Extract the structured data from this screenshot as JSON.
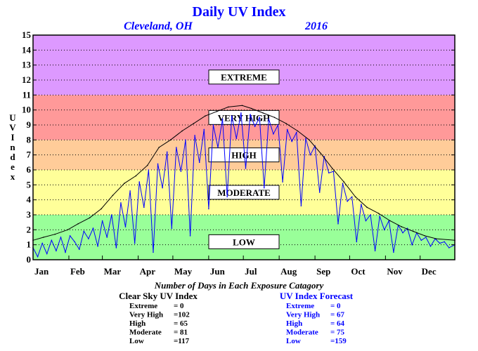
{
  "chart_data": {
    "type": "line",
    "title": "Daily UV Index",
    "location": "Cleveland, OH",
    "year": "2016",
    "ylabel": "UV Index",
    "ylim": [
      0,
      15
    ],
    "yticks": [
      0,
      1,
      2,
      3,
      4,
      5,
      6,
      7,
      8,
      9,
      10,
      11,
      12,
      13,
      14,
      15
    ],
    "xlim": [
      1,
      366
    ],
    "months": [
      {
        "label": "Jan",
        "day": 1
      },
      {
        "label": "Feb",
        "day": 32
      },
      {
        "label": "Mar",
        "day": 61
      },
      {
        "label": "Apr",
        "day": 92
      },
      {
        "label": "May",
        "day": 122
      },
      {
        "label": "Jun",
        "day": 153
      },
      {
        "label": "Jul",
        "day": 183
      },
      {
        "label": "Aug",
        "day": 214
      },
      {
        "label": "Sep",
        "day": 245
      },
      {
        "label": "Oct",
        "day": 275
      },
      {
        "label": "Nov",
        "day": 306
      },
      {
        "label": "Dec",
        "day": 336
      }
    ],
    "zones": [
      {
        "label": "LOW",
        "from": 0,
        "to": 3,
        "color": "#99ff99"
      },
      {
        "label": "MODERATE",
        "from": 3,
        "to": 6,
        "color": "#ffff99"
      },
      {
        "label": "HIGH",
        "from": 6,
        "to": 8,
        "color": "#ffcc99"
      },
      {
        "label": "VERY HIGH",
        "from": 8,
        "to": 11,
        "color": "#ff9999"
      },
      {
        "label": "EXTREME",
        "from": 11,
        "to": 15,
        "color": "#dd99ff"
      }
    ],
    "series": [
      {
        "name": "Clear Sky UV Index",
        "color": "#000000",
        "x": [
          1,
          10,
          20,
          31,
          40,
          50,
          60,
          70,
          80,
          90,
          100,
          110,
          120,
          130,
          140,
          150,
          160,
          170,
          182,
          190,
          200,
          210,
          220,
          230,
          240,
          250,
          260,
          270,
          280,
          290,
          300,
          310,
          320,
          330,
          340,
          350,
          366
        ],
        "values": [
          1.3,
          1.5,
          1.7,
          2.0,
          2.4,
          2.8,
          3.4,
          4.3,
          5.1,
          5.6,
          6.3,
          7.5,
          8.0,
          8.6,
          9.1,
          9.6,
          9.9,
          10.2,
          10.3,
          10.1,
          9.8,
          9.5,
          9.1,
          8.6,
          8.0,
          7.1,
          6.1,
          5.2,
          4.2,
          3.5,
          3.1,
          2.6,
          2.2,
          1.9,
          1.6,
          1.4,
          1.3
        ]
      },
      {
        "name": "UV Index Forecast",
        "color": "#0000ff",
        "x": [
          1,
          5,
          9,
          13,
          17,
          21,
          25,
          29,
          33,
          37,
          41,
          45,
          49,
          53,
          57,
          61,
          65,
          69,
          73,
          77,
          81,
          85,
          89,
          93,
          97,
          101,
          105,
          109,
          113,
          117,
          121,
          125,
          129,
          133,
          137,
          141,
          145,
          149,
          153,
          157,
          161,
          165,
          169,
          173,
          177,
          181,
          185,
          189,
          193,
          197,
          201,
          205,
          209,
          213,
          217,
          221,
          225,
          229,
          233,
          237,
          241,
          245,
          249,
          253,
          257,
          261,
          265,
          269,
          273,
          277,
          281,
          285,
          289,
          293,
          297,
          301,
          305,
          309,
          313,
          317,
          321,
          325,
          329,
          333,
          337,
          341,
          345,
          349,
          353,
          357,
          361,
          366
        ],
        "values": [
          0.8,
          0.2,
          1.1,
          0.4,
          1.3,
          0.6,
          1.5,
          0.5,
          1.6,
          1.2,
          0.7,
          1.9,
          1.4,
          2.1,
          0.9,
          2.6,
          1.5,
          3.0,
          0.8,
          3.8,
          2.2,
          4.6,
          1.1,
          5.2,
          3.5,
          6.0,
          0.5,
          6.4,
          4.8,
          7.2,
          2.1,
          7.5,
          5.9,
          8.0,
          1.6,
          8.3,
          6.5,
          8.7,
          3.4,
          9.0,
          7.5,
          9.4,
          4.2,
          9.6,
          8.1,
          9.8,
          6.1,
          9.7,
          8.9,
          9.5,
          4.8,
          9.4,
          8.4,
          9.0,
          5.2,
          8.7,
          7.9,
          8.5,
          3.6,
          8.1,
          7.0,
          7.6,
          4.5,
          6.9,
          5.8,
          5.9,
          2.4,
          5.1,
          3.9,
          4.2,
          1.2,
          3.7,
          2.6,
          3.0,
          0.6,
          2.9,
          2.0,
          2.6,
          0.5,
          2.3,
          1.8,
          2.1,
          1.0,
          1.8,
          1.3,
          1.5,
          0.9,
          1.4,
          1.1,
          1.2,
          0.8,
          1.0
        ]
      }
    ]
  },
  "stats": {
    "caption": "Number of Days in Each Exposure Catagory",
    "clear_sky": {
      "heading": "Clear Sky UV Index",
      "rows": [
        {
          "label": "Extreme",
          "value": "=   0"
        },
        {
          "label": "Very High",
          "value": "=102"
        },
        {
          "label": "High",
          "value": "= 65"
        },
        {
          "label": "Moderate",
          "value": "= 81"
        },
        {
          "label": "Low",
          "value": "=117"
        }
      ]
    },
    "forecast": {
      "heading": "UV Index Forecast",
      "rows": [
        {
          "label": "Extreme",
          "value": "=   0"
        },
        {
          "label": "Very High",
          "value": "= 67"
        },
        {
          "label": "High",
          "value": "= 64"
        },
        {
          "label": "Moderate",
          "value": "= 75"
        },
        {
          "label": "Low",
          "value": "=159"
        }
      ]
    }
  },
  "colors": {
    "title": "#0000ff",
    "clear_sky_heading": "#000000",
    "forecast_heading": "#0000ff"
  }
}
